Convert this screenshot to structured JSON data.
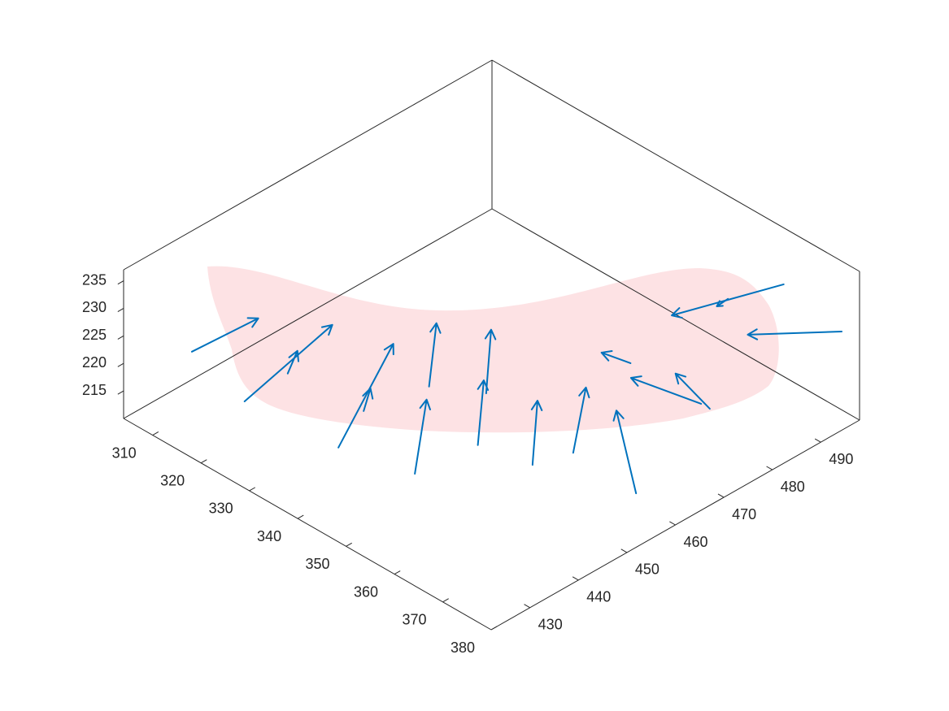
{
  "chart_data": {
    "type": "quiver3",
    "xlim": [
      304,
      380
    ],
    "ylim": [
      422,
      498
    ],
    "zlim": [
      210,
      237
    ],
    "xticks": [
      310,
      320,
      330,
      340,
      350,
      360,
      370,
      380
    ],
    "yticks": [
      430,
      440,
      450,
      460,
      470,
      480,
      490
    ],
    "zticks": [
      215,
      220,
      225,
      230,
      235
    ],
    "series": [
      {
        "color": "#0072bd",
        "x": [
          310.9,
          325.3,
          324.7,
          343.3,
          339.3,
          341.6,
          355.9,
          357.2,
          348.7,
          366.4,
          368.4,
          382.2,
          358.1,
          372.7,
          374.5,
          359.6,
          356.5,
          374.1
        ],
        "y": [
          429.2,
          425.7,
          435.2,
          427.1,
          436.3,
          447.5,
          430.3,
          442.0,
          452.2,
          444.1,
          450.5,
          449.7,
          472.6,
          472.6,
          472.6,
          502.7,
          494.3,
          500.2
        ],
        "z": [
          222,
          222,
          222,
          222,
          222,
          222,
          222,
          222,
          222,
          222,
          222,
          222,
          222,
          222,
          222,
          222,
          222,
          222
        ],
        "u": [
          0.8,
          -4.8,
          -3.1,
          -13.1,
          -3.4,
          -10.7,
          -12.2,
          -11.1,
          -11.0,
          -11.1,
          -10.5,
          -17.0,
          -4.9,
          -11.9,
          -9.9,
          -5.9,
          0.2,
          -9.1
        ],
        "v": [
          12.9,
          22.9,
          5.1,
          24.4,
          4.8,
          12.2,
          14.6,
          12.3,
          12.0,
          12.1,
          13.1,
          12.9,
          -1.1,
          -2.6,
          2.8,
          -17.2,
          -2.5,
          -10.3
        ],
        "w": [
          0,
          0,
          0,
          0,
          0,
          0,
          0,
          0,
          0,
          0,
          0,
          0,
          0,
          0,
          0,
          0,
          0,
          0
        ]
      }
    ]
  }
}
